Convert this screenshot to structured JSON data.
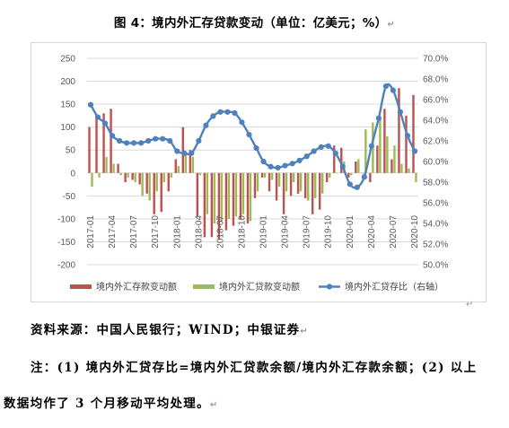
{
  "caption": "图 4：境内外汇存贷款变动（单位：亿美元；%）",
  "paragraph_mark": "↵",
  "source_text": "资料来源：中国人民银行；WIND；中银证券",
  "note_line1": "注：(1) 境内外汇贷存比=境内外汇贷款余额/境内外汇存款余额；(2) 以上",
  "note_line2": "数据均作了 3 个月移动平均处理。",
  "colors": {
    "deposit": "#c0504d",
    "loan": "#9bbb59",
    "ratio": "#4f81bd",
    "gridline": "#d9d9d9",
    "axis": "#bfbfbf"
  },
  "chart_data": {
    "type": "bar+line",
    "left_axis": {
      "ylim": [
        -200,
        250
      ],
      "ticks": [
        -200,
        -150,
        -100,
        -50,
        0,
        50,
        100,
        150,
        200,
        250
      ]
    },
    "right_axis": {
      "ylim": [
        50,
        70
      ],
      "ticks": [
        "50.0%",
        "52.0%",
        "54.0%",
        "56.0%",
        "58.0%",
        "60.0%",
        "62.0%",
        "64.0%",
        "66.0%",
        "68.0%",
        "70.0%"
      ]
    },
    "x_tick_labels": [
      "2017-01",
      "2017-04",
      "2017-07",
      "2017-10",
      "2018-01",
      "2018-04",
      "2018-07",
      "2018-10",
      "2019-01",
      "2019-04",
      "2019-07",
      "2019-10",
      "2020-01",
      "2020-04",
      "2020-07",
      "2020-10"
    ],
    "months": [
      "2017-01",
      "2017-02",
      "2017-03",
      "2017-04",
      "2017-05",
      "2017-06",
      "2017-07",
      "2017-08",
      "2017-09",
      "2017-10",
      "2017-11",
      "2017-12",
      "2018-01",
      "2018-02",
      "2018-03",
      "2018-04",
      "2018-05",
      "2018-06",
      "2018-07",
      "2018-08",
      "2018-09",
      "2018-10",
      "2018-11",
      "2018-12",
      "2019-01",
      "2019-02",
      "2019-03",
      "2019-04",
      "2019-05",
      "2019-06",
      "2019-07",
      "2019-08",
      "2019-09",
      "2019-10",
      "2019-11",
      "2019-12",
      "2020-01",
      "2020-02",
      "2020-03",
      "2020-04",
      "2020-05",
      "2020-06",
      "2020-07",
      "2020-08",
      "2020-09",
      "2020-10"
    ],
    "series": [
      {
        "name": "境内外汇存款变动额",
        "kind": "bar",
        "values": [
          100,
          120,
          130,
          140,
          20,
          -20,
          -15,
          -25,
          -45,
          -90,
          -85,
          -40,
          30,
          100,
          50,
          -95,
          -140,
          -140,
          -145,
          -125,
          -115,
          -100,
          -110,
          -55,
          -10,
          -40,
          -60,
          -90,
          -50,
          -45,
          -55,
          -90,
          -80,
          -20,
          60,
          55,
          -10,
          25,
          0,
          -20,
          60,
          140,
          30,
          185,
          125,
          170
        ],
        "color": "#c0504d"
      },
      {
        "name": "境内外汇贷款变动额",
        "kind": "bar",
        "values": [
          -30,
          -10,
          35,
          20,
          -5,
          -10,
          -20,
          -50,
          -60,
          -40,
          -20,
          -10,
          15,
          40,
          35,
          -5,
          -90,
          -110,
          -105,
          -100,
          -95,
          -90,
          -105,
          -40,
          -10,
          -15,
          -30,
          -40,
          -20,
          -40,
          -60,
          -55,
          -45,
          -10,
          0,
          25,
          -5,
          30,
          95,
          110,
          120,
          80,
          60,
          20,
          10,
          -20
        ],
        "color": "#9bbb59"
      },
      {
        "name": "境内外汇贷存比（右轴）",
        "kind": "line",
        "axis": "right",
        "values": [
          65.5,
          64.3,
          63.7,
          62.5,
          62.0,
          61.8,
          61.8,
          61.8,
          62.0,
          62.2,
          62.2,
          62.0,
          61.0,
          60.8,
          60.8,
          62.0,
          63.5,
          64.4,
          64.8,
          64.8,
          64.7,
          63.8,
          62.6,
          61.3,
          60.0,
          59.5,
          59.4,
          59.6,
          59.8,
          60.1,
          60.5,
          61.0,
          61.4,
          61.5,
          60.8,
          59.5,
          57.8,
          57.5,
          58.5,
          61.5,
          64.2,
          67.3,
          66.9,
          64.8,
          62.5,
          61.0
        ],
        "color": "#4f81bd"
      }
    ]
  }
}
